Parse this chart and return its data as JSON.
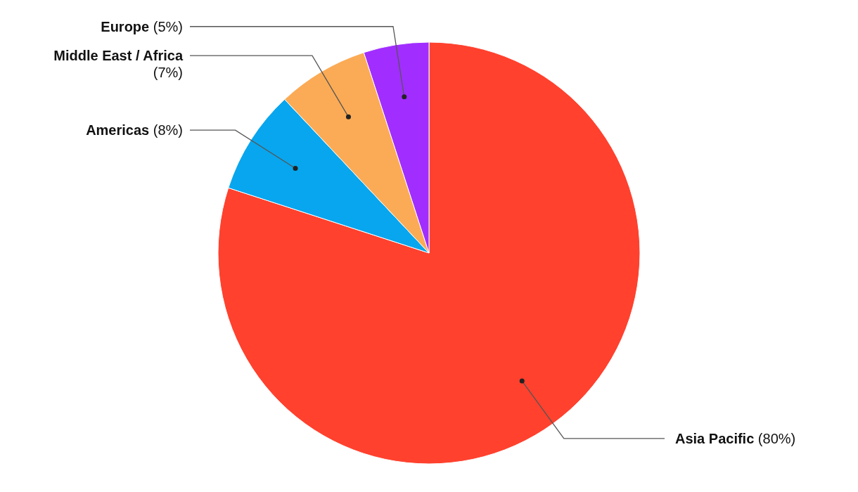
{
  "chart_data": {
    "type": "pie",
    "categories": [
      "Asia Pacific",
      "Americas",
      "Middle East / Africa",
      "Europe"
    ],
    "values": [
      80,
      8,
      7,
      5
    ],
    "colors": [
      "#ff412e",
      "#08a6ee",
      "#fbab55",
      "#a12eff"
    ],
    "value_labels": [
      "(80%)",
      "(8%)",
      "(7%)",
      "(5%)"
    ]
  }
}
